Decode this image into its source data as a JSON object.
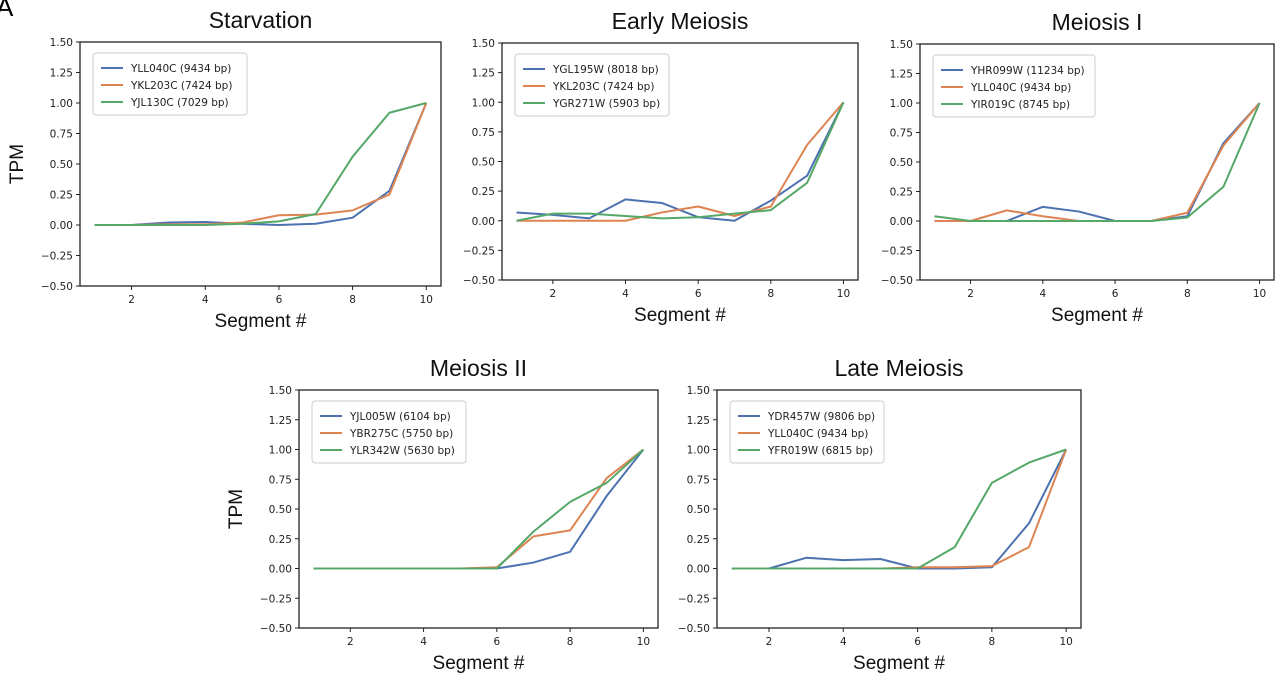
{
  "panel_letter": "A",
  "chart_data": [
    {
      "type": "line",
      "title": "Starvation",
      "xlabel": "Segment #",
      "ylabel": "TPM",
      "xlim": [
        0.6,
        10.4
      ],
      "ylim": [
        -0.5,
        1.5
      ],
      "x_ticks": [
        2,
        4,
        6,
        8,
        10
      ],
      "y_ticks": [
        "−0.50",
        "−0.25",
        "0.00",
        "0.25",
        "0.50",
        "0.75",
        "1.00",
        "1.25",
        "1.50"
      ],
      "x": [
        1,
        2,
        3,
        4,
        5,
        6,
        7,
        8,
        9,
        10
      ],
      "legend_position": "top-left",
      "grid": false,
      "series": [
        {
          "name": "YLL040C (9434 bp)",
          "color": "#4c72b0",
          "values": [
            0.0,
            0.0,
            0.02,
            0.025,
            0.01,
            0.0,
            0.01,
            0.06,
            0.28,
            1.0
          ]
        },
        {
          "name": "YKL203C (7424 bp)",
          "color": "#dd8452",
          "values": [
            0.0,
            0.0,
            0.005,
            0.005,
            0.02,
            0.08,
            0.085,
            0.12,
            0.25,
            1.0
          ]
        },
        {
          "name": "YJL130C (7029 bp)",
          "color": "#55a868",
          "values": [
            0.0,
            0.0,
            0.0,
            0.0,
            0.01,
            0.03,
            0.09,
            0.56,
            0.92,
            1.0
          ]
        }
      ]
    },
    {
      "type": "line",
      "title": "Early Meiosis",
      "xlabel": "Segment #",
      "ylabel": "",
      "xlim": [
        0.6,
        10.4
      ],
      "ylim": [
        -0.5,
        1.5
      ],
      "x_ticks": [
        2,
        4,
        6,
        8,
        10
      ],
      "y_ticks": [
        "−0.50",
        "−0.25",
        "0.00",
        "0.25",
        "0.50",
        "0.75",
        "1.00",
        "1.25",
        "1.50"
      ],
      "x": [
        1,
        2,
        3,
        4,
        5,
        6,
        7,
        8,
        9,
        10
      ],
      "legend_position": "top-left",
      "grid": false,
      "series": [
        {
          "name": "YGL195W (8018 bp)",
          "color": "#4c72b0",
          "values": [
            0.07,
            0.05,
            0.02,
            0.18,
            0.15,
            0.03,
            0.0,
            0.17,
            0.38,
            1.0
          ]
        },
        {
          "name": "YKL203C (7424 bp)",
          "color": "#dd8452",
          "values": [
            0.0,
            0.0,
            0.0,
            0.0,
            0.07,
            0.12,
            0.04,
            0.12,
            0.64,
            1.0
          ]
        },
        {
          "name": "YGR271W (5903 bp)",
          "color": "#55a868",
          "values": [
            0.0,
            0.06,
            0.06,
            0.04,
            0.02,
            0.03,
            0.06,
            0.09,
            0.32,
            1.0
          ]
        }
      ]
    },
    {
      "type": "line",
      "title": "Meiosis I",
      "xlabel": "Segment #",
      "ylabel": "",
      "xlim": [
        0.6,
        10.4
      ],
      "ylim": [
        -0.5,
        1.5
      ],
      "x_ticks": [
        2,
        4,
        6,
        8,
        10
      ],
      "y_ticks": [
        "−0.50",
        "−0.25",
        "0.00",
        "0.25",
        "0.50",
        "0.75",
        "1.00",
        "1.25",
        "1.50"
      ],
      "x": [
        1,
        2,
        3,
        4,
        5,
        6,
        7,
        8,
        9,
        10
      ],
      "legend_position": "top-left",
      "grid": false,
      "series": [
        {
          "name": "YHR099W (11234 bp)",
          "color": "#4c72b0",
          "values": [
            0.0,
            0.0,
            0.0,
            0.12,
            0.08,
            0.0,
            0.0,
            0.04,
            0.66,
            1.0
          ]
        },
        {
          "name": "YLL040C (9434 bp)",
          "color": "#dd8452",
          "values": [
            0.0,
            0.0,
            0.09,
            0.04,
            0.0,
            0.0,
            0.0,
            0.07,
            0.64,
            1.0
          ]
        },
        {
          "name": "YIR019C (8745 bp)",
          "color": "#55a868",
          "values": [
            0.04,
            0.0,
            0.0,
            0.0,
            0.0,
            0.0,
            0.0,
            0.03,
            0.29,
            1.0
          ]
        }
      ]
    },
    {
      "type": "line",
      "title": "Meiosis II",
      "xlabel": "Segment #",
      "ylabel": "TPM",
      "xlim": [
        0.6,
        10.4
      ],
      "ylim": [
        -0.5,
        1.5
      ],
      "x_ticks": [
        2,
        4,
        6,
        8,
        10
      ],
      "y_ticks": [
        "−0.50",
        "−0.25",
        "0.00",
        "0.25",
        "0.50",
        "0.75",
        "1.00",
        "1.25",
        "1.50"
      ],
      "x": [
        1,
        2,
        3,
        4,
        5,
        6,
        7,
        8,
        9,
        10
      ],
      "legend_position": "top-left",
      "grid": false,
      "series": [
        {
          "name": "YJL005W (6104 bp)",
          "color": "#4c72b0",
          "values": [
            0.0,
            0.0,
            0.0,
            0.0,
            0.0,
            0.0,
            0.05,
            0.14,
            0.61,
            1.0
          ]
        },
        {
          "name": "YBR275C (5750 bp)",
          "color": "#dd8452",
          "values": [
            0.0,
            0.0,
            0.0,
            0.0,
            0.0,
            0.01,
            0.27,
            0.32,
            0.76,
            1.0
          ]
        },
        {
          "name": "YLR342W (5630 bp)",
          "color": "#55a868",
          "values": [
            0.0,
            0.0,
            0.0,
            0.0,
            0.0,
            0.0,
            0.31,
            0.56,
            0.72,
            1.0
          ]
        }
      ]
    },
    {
      "type": "line",
      "title": "Late Meiosis",
      "xlabel": "Segment #",
      "ylabel": "",
      "xlim": [
        0.6,
        10.4
      ],
      "ylim": [
        -0.5,
        1.5
      ],
      "x_ticks": [
        2,
        4,
        6,
        8,
        10
      ],
      "y_ticks": [
        "−0.50",
        "−0.25",
        "0.00",
        "0.25",
        "0.50",
        "0.75",
        "1.00",
        "1.25",
        "1.50"
      ],
      "x": [
        1,
        2,
        3,
        4,
        5,
        6,
        7,
        8,
        9,
        10
      ],
      "legend_position": "top-left",
      "grid": false,
      "series": [
        {
          "name": "YDR457W (9806 bp)",
          "color": "#4c72b0",
          "values": [
            0.0,
            0.0,
            0.09,
            0.07,
            0.08,
            0.0,
            0.0,
            0.01,
            0.38,
            1.0
          ]
        },
        {
          "name": "YLL040C (9434 bp)",
          "color": "#dd8452",
          "values": [
            0.0,
            0.0,
            0.0,
            0.0,
            0.0,
            0.01,
            0.01,
            0.02,
            0.18,
            1.0
          ]
        },
        {
          "name": "YFR019W (6815 bp)",
          "color": "#55a868",
          "values": [
            0.0,
            0.0,
            0.0,
            0.0,
            0.0,
            0.0,
            0.18,
            0.72,
            0.89,
            1.0
          ]
        }
      ]
    }
  ]
}
